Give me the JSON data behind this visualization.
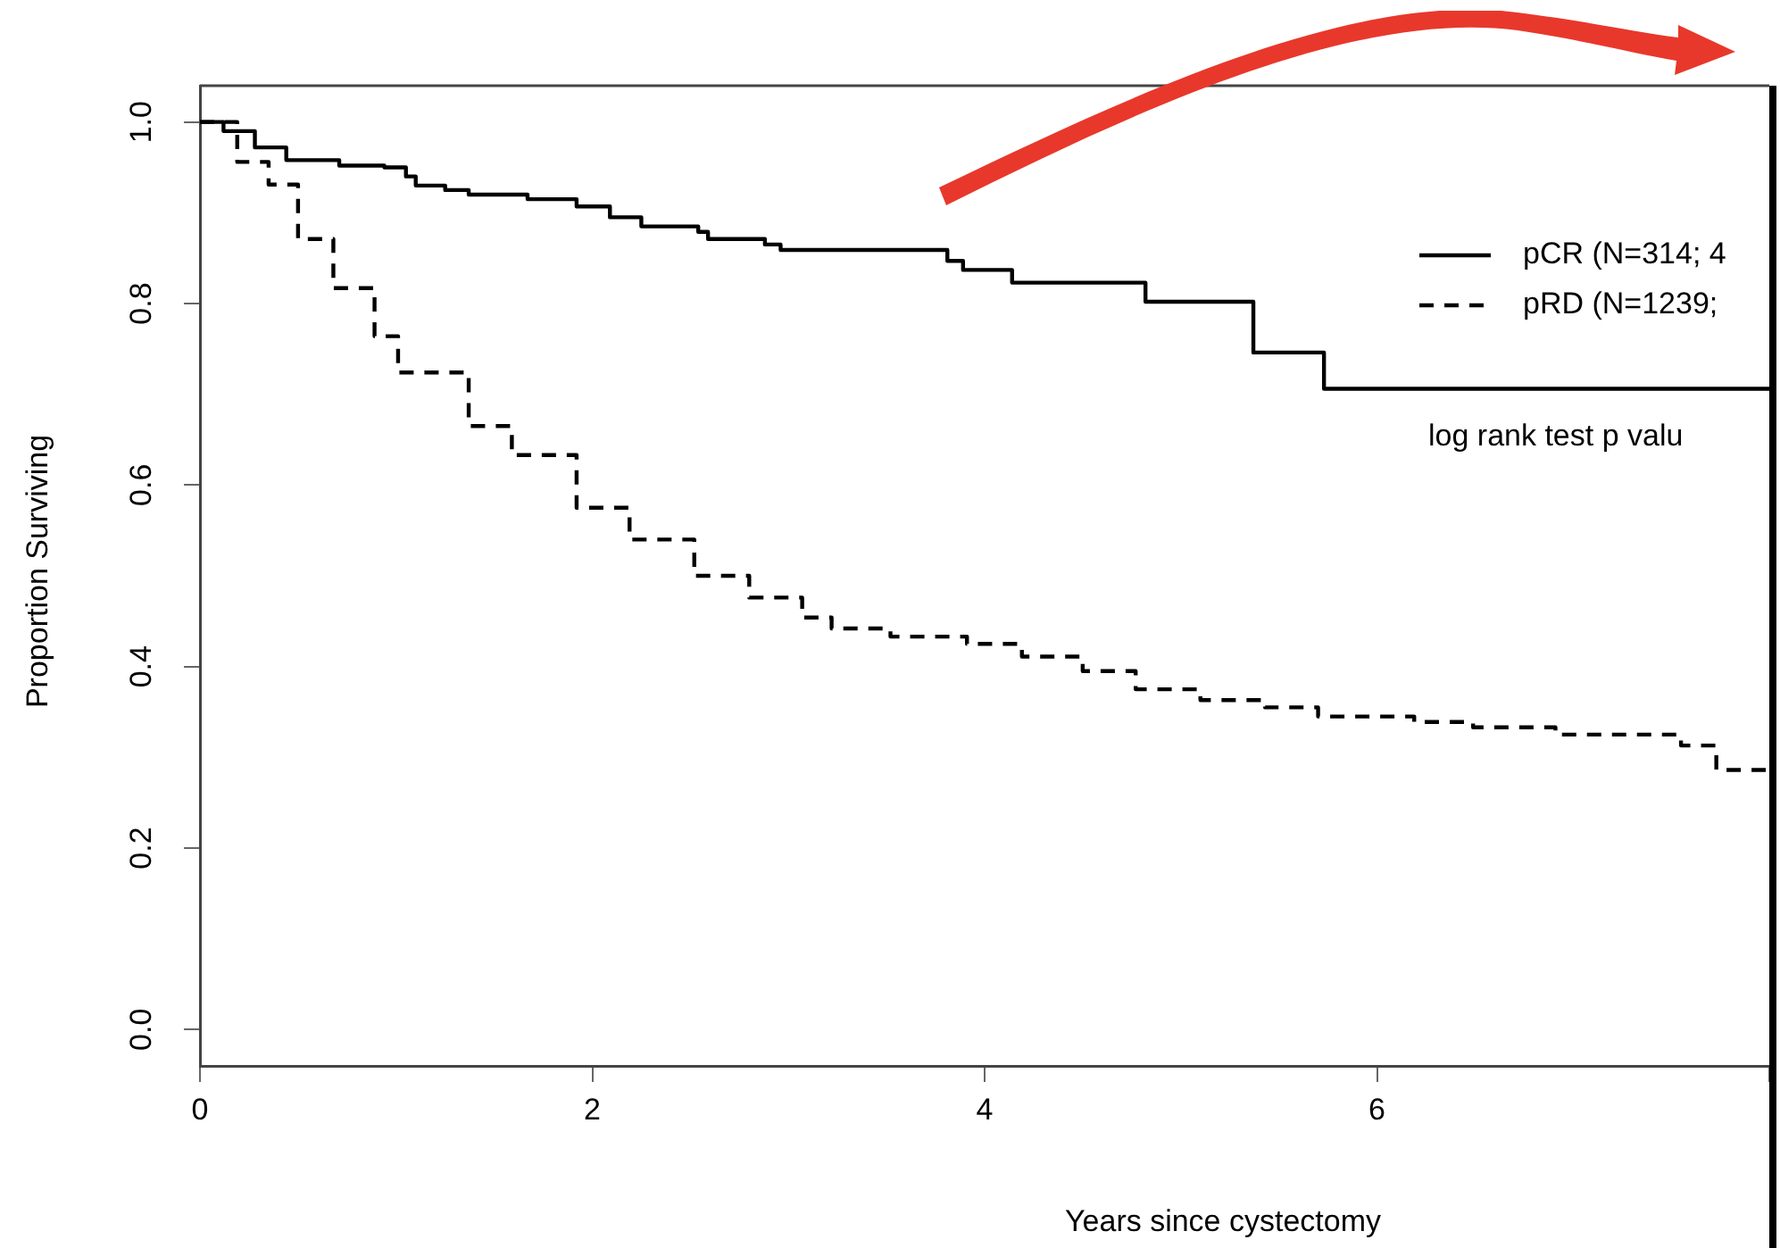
{
  "chart_data": {
    "type": "step",
    "xlabel": "Years since cystectomy",
    "ylabel": "Proportion Surviving",
    "xlim": [
      0,
      8
    ],
    "xticks": [
      0,
      2,
      4,
      6,
      {
        "value": 8,
        "label": null
      }
    ],
    "ylim": [
      -0.04,
      1.04
    ],
    "yticks": [
      {
        "value": 0,
        "label": "0.0"
      },
      0.2,
      0.4,
      0.6,
      0.8,
      {
        "value": 1,
        "label": "1.0"
      }
    ],
    "grid": false,
    "legend": "top right",
    "marker": "none",
    "annotations": [
      "log rank test p valu"
    ],
    "series": [
      {
        "name": "pCR (N=314; 4",
        "color": "#000000",
        "line_style": "solid",
        "x": [
          0,
          0.12,
          0.28,
          0.44,
          0.71,
          0.94,
          1.05,
          1.1,
          1.25,
          1.37,
          1.67,
          1.92,
          2.09,
          2.25,
          2.54,
          2.59,
          2.88,
          2.96,
          3.81,
          3.89,
          4.14,
          4.82,
          5.37,
          5.73,
          8
        ],
        "values": [
          1.0,
          0.99,
          0.972,
          0.958,
          0.952,
          0.95,
          0.94,
          0.93,
          0.925,
          0.92,
          0.915,
          0.907,
          0.895,
          0.885,
          0.879,
          0.871,
          0.865,
          0.859,
          0.847,
          0.837,
          0.823,
          0.802,
          0.746,
          0.706,
          0.706
        ]
      },
      {
        "name": "pRD (N=1239;",
        "color": "#000000",
        "line_style": "dashed",
        "x": [
          0,
          0.19,
          0.35,
          0.5,
          0.68,
          0.89,
          1.01,
          1.37,
          1.59,
          1.92,
          2.19,
          2.52,
          2.8,
          3.07,
          3.22,
          3.52,
          3.91,
          4.19,
          4.5,
          4.77,
          5.1,
          5.43,
          5.7,
          6.19,
          6.49,
          6.91,
          7.46,
          7.55,
          7.73,
          8
        ],
        "values": [
          1.0,
          0.956,
          0.931,
          0.871,
          0.817,
          0.764,
          0.724,
          0.665,
          0.633,
          0.575,
          0.54,
          0.5,
          0.476,
          0.454,
          0.442,
          0.433,
          0.425,
          0.411,
          0.395,
          0.375,
          0.363,
          0.355,
          0.345,
          0.339,
          0.333,
          0.325,
          0.325,
          0.313,
          0.286,
          0.286
        ]
      }
    ]
  }
}
